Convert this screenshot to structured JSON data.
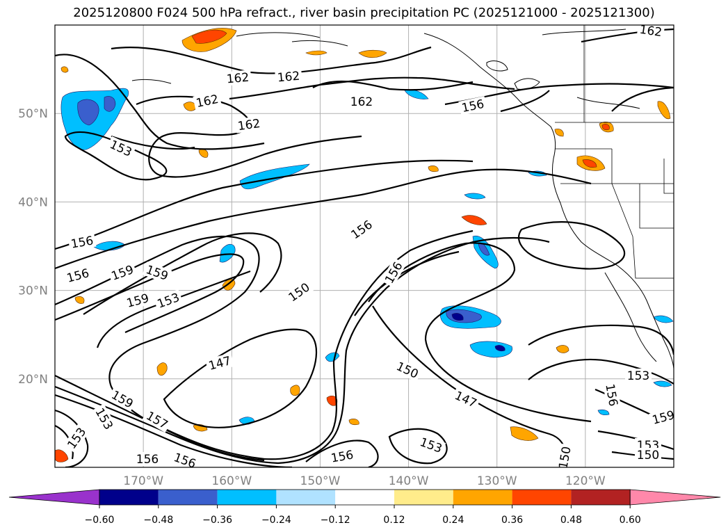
{
  "title": "2025120800 F024 500 hPa refract., river basin precipitation PC (2025121000 - 2025121300)",
  "map": {
    "lat_labels": [
      {
        "label": "50°N",
        "lat": 50
      },
      {
        "label": "40°N",
        "lat": 40
      },
      {
        "label": "30°N",
        "lat": 30
      },
      {
        "label": "20°N",
        "lat": 20
      }
    ],
    "lon_labels": [
      {
        "label": "170°W",
        "lon": -170
      },
      {
        "label": "160°W",
        "lon": -160
      },
      {
        "label": "150°W",
        "lon": -150
      },
      {
        "label": "140°W",
        "lon": -140
      },
      {
        "label": "130°W",
        "lon": -130
      },
      {
        "label": "120°W",
        "lon": -120
      }
    ],
    "gridline_color": "#b0b0b0",
    "coastline_color": "#000000",
    "contour_color": "#000000",
    "contour_labels": [
      "162",
      "162",
      "162",
      "162",
      "162",
      "162",
      "156",
      "153",
      "156",
      "156",
      "159",
      "159",
      "159",
      "153",
      "150",
      "156",
      "156",
      "147",
      "150",
      "147",
      "150",
      "153",
      "156",
      "156",
      "153",
      "159",
      "153",
      "159",
      "157",
      "156",
      "156",
      "153",
      "150",
      "153"
    ]
  },
  "colorbar": {
    "ticks": [
      "−0.60",
      "−0.48",
      "−0.36",
      "−0.24",
      "−0.12",
      "0.12",
      "0.24",
      "0.36",
      "0.48",
      "0.60"
    ],
    "colors": [
      "#9932cc",
      "#00008b",
      "#3a5fcd",
      "#00bfff",
      "#b0e2ff",
      "#ffffff",
      "#ffec8b",
      "#ffa500",
      "#ff4500",
      "#b22222",
      "#ff88aa"
    ]
  }
}
